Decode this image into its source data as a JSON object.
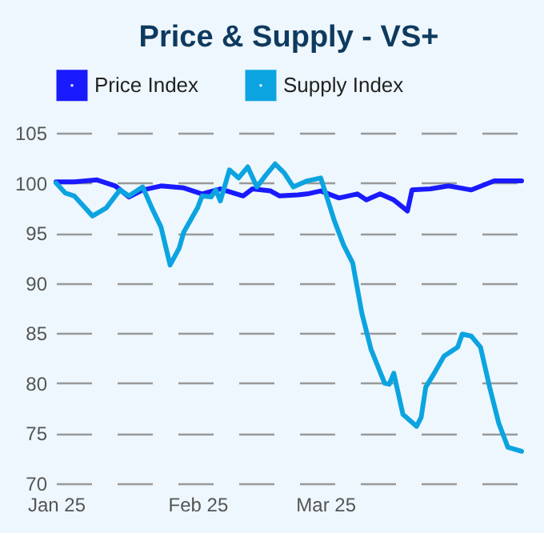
{
  "chart_data": {
    "type": "line",
    "title": "Price & Supply - VS+",
    "xlim": [
      "2025-01-01",
      "2025-04-13"
    ],
    "xticks": [
      {
        "value": "2025-01-01",
        "label": "Jan 25"
      },
      {
        "value": "2025-02-01",
        "label": "Feb 25"
      },
      {
        "value": "2025-03-01",
        "label": "Mar 25"
      }
    ],
    "ylim": [
      70,
      105
    ],
    "yticks": [
      70,
      75,
      80,
      85,
      90,
      95,
      100,
      105
    ],
    "grid": "y",
    "legend": "top",
    "marker": "none",
    "line_style": "solid",
    "series": [
      {
        "name": "Price Index",
        "color": "#1a1aff",
        "x": [
          "2025-01-01",
          "2025-01-05",
          "2025-01-10",
          "2025-01-14",
          "2025-01-17",
          "2025-01-20",
          "2025-01-24",
          "2025-01-29",
          "2025-02-02",
          "2025-02-06",
          "2025-02-11",
          "2025-02-13",
          "2025-02-17",
          "2025-02-19",
          "2025-02-23",
          "2025-02-25",
          "2025-02-28",
          "2025-03-04",
          "2025-03-08",
          "2025-03-10",
          "2025-03-13",
          "2025-03-16",
          "2025-03-19",
          "2025-03-20",
          "2025-03-24",
          "2025-03-28",
          "2025-04-02",
          "2025-04-07",
          "2025-04-13"
        ],
        "values": [
          100.1,
          100.1,
          100.3,
          99.7,
          98.6,
          99.3,
          99.7,
          99.5,
          98.9,
          99.4,
          98.7,
          99.4,
          99.2,
          98.7,
          98.8,
          98.9,
          99.2,
          98.5,
          98.9,
          98.3,
          98.9,
          98.3,
          97.2,
          99.3,
          99.4,
          99.7,
          99.3,
          100.2,
          100.2
        ]
      },
      {
        "name": "Supply Index",
        "color": "#0ca4e0",
        "x": [
          "2025-01-01",
          "2025-01-03",
          "2025-01-05",
          "2025-01-09",
          "2025-01-12",
          "2025-01-15",
          "2025-01-17",
          "2025-01-20",
          "2025-01-22",
          "2025-01-24",
          "2025-01-26",
          "2025-01-28",
          "2025-01-29",
          "2025-02-01",
          "2025-02-02",
          "2025-02-04",
          "2025-02-05",
          "2025-02-06",
          "2025-02-08",
          "2025-02-10",
          "2025-02-12",
          "2025-02-14",
          "2025-02-16",
          "2025-02-18",
          "2025-02-20",
          "2025-02-22",
          "2025-02-25",
          "2025-02-28",
          "2025-03-03",
          "2025-03-05",
          "2025-03-07",
          "2025-03-09",
          "2025-03-11",
          "2025-03-14",
          "2025-03-15",
          "2025-03-16",
          "2025-03-18",
          "2025-03-21",
          "2025-03-22",
          "2025-03-23",
          "2025-03-25",
          "2025-03-27",
          "2025-03-30",
          "2025-03-31",
          "2025-04-02",
          "2025-04-04",
          "2025-04-06",
          "2025-04-08",
          "2025-04-10",
          "2025-04-13"
        ],
        "values": [
          100,
          99.0,
          98.7,
          96.7,
          97.5,
          99.3,
          98.7,
          99.6,
          97.5,
          95.6,
          91.8,
          93.5,
          95.1,
          97.5,
          98.7,
          98.6,
          99.3,
          98.2,
          101.3,
          100.5,
          101.6,
          99.6,
          100.8,
          101.9,
          101.0,
          99.6,
          100.2,
          100.5,
          96.2,
          93.8,
          92.0,
          87.0,
          83.4,
          80.0,
          79.9,
          81.0,
          76.9,
          75.7,
          76.6,
          79.6,
          81.1,
          82.7,
          83.6,
          84.9,
          84.7,
          83.6,
          79.6,
          76.0,
          73.6,
          73.2
        ]
      }
    ]
  }
}
